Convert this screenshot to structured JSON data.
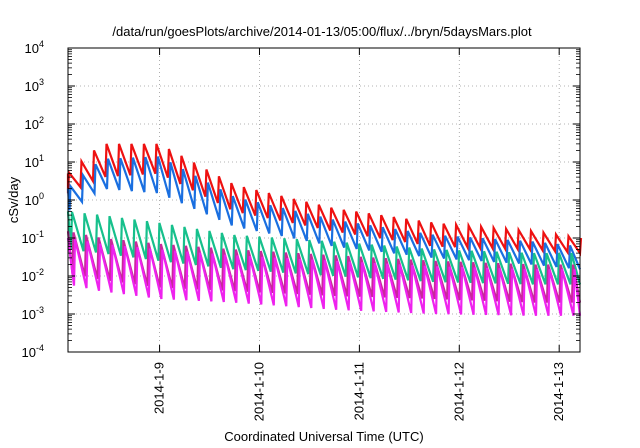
{
  "chart_data": {
    "type": "line",
    "title": "/data/run/goesPlots/archive/2014-01-13/05:00/flux/../bryn/5daysMars.plot",
    "xlabel": "Coordinated Universal Time (UTC)",
    "ylabel": "cSv/day",
    "y_scale": "log",
    "ylim": [
      "1e-4",
      "1e4"
    ],
    "xlim": [
      "2014-01-08 02:00",
      "2014-01-13 05:00"
    ],
    "grid": true,
    "y_ticks": [
      {
        "base": "10",
        "exp": "4",
        "value": 10000
      },
      {
        "base": "10",
        "exp": "3",
        "value": 1000
      },
      {
        "base": "10",
        "exp": "2",
        "value": 100
      },
      {
        "base": "10",
        "exp": "1",
        "value": 10
      },
      {
        "base": "10",
        "exp": "0",
        "value": 1
      },
      {
        "base": "10",
        "exp": "-1",
        "value": 0.1
      },
      {
        "base": "10",
        "exp": "-2",
        "value": 0.01
      },
      {
        "base": "10",
        "exp": "-3",
        "value": 0.001
      },
      {
        "base": "10",
        "exp": "-4",
        "value": 0.0001
      }
    ],
    "x_ticks": [
      "2014-1-9",
      "2014-1-10",
      "2014-1-11",
      "2014-1-12",
      "2014-1-13"
    ],
    "sawtooth_period_hours": 3,
    "series": [
      {
        "color": "#ee1111",
        "x": [
          "2014-01-08 02:00",
          "2014-01-08 10:00",
          "2014-01-09 00:00",
          "2014-01-09 18:00",
          "2014-01-10 18:00",
          "2014-01-11 18:00",
          "2014-01-12 18:00",
          "2014-01-13 05:00"
        ],
        "peak": [
          5,
          30,
          30,
          2.5,
          0.6,
          0.25,
          0.15,
          0.1
        ],
        "trough": [
          1.5,
          4,
          5,
          0.5,
          0.15,
          0.06,
          0.05,
          0.04
        ]
      },
      {
        "color": "#1a6fe0",
        "x": [
          "2014-01-08 02:00",
          "2014-01-08 10:00",
          "2014-01-09 00:00",
          "2014-01-09 18:00",
          "2014-01-10 18:00",
          "2014-01-11 18:00",
          "2014-01-12 18:00",
          "2014-01-13 05:00"
        ],
        "peak": [
          2,
          12,
          14,
          1.2,
          0.3,
          0.12,
          0.08,
          0.06
        ],
        "trough": [
          0.5,
          2,
          1.5,
          0.2,
          0.06,
          0.03,
          0.02,
          0.015
        ]
      },
      {
        "color": "#17c08c",
        "x": [
          "2014-01-08 02:00",
          "2014-01-08 10:00",
          "2014-01-09 00:00",
          "2014-01-09 18:00",
          "2014-01-10 18:00",
          "2014-01-11 18:00",
          "2014-01-12 18:00",
          "2014-01-13 05:00"
        ],
        "peak": [
          0.5,
          0.4,
          0.25,
          0.12,
          0.08,
          0.05,
          0.04,
          0.04
        ],
        "trough": [
          0.05,
          0.04,
          0.025,
          0.015,
          0.01,
          0.007,
          0.006,
          0.006
        ]
      },
      {
        "color": "#c8289a",
        "x": [
          "2014-01-08 02:00",
          "2014-01-08 10:00",
          "2014-01-09 00:00",
          "2014-01-09 18:00",
          "2014-01-10 18:00",
          "2014-01-11 18:00",
          "2014-01-12 18:00",
          "2014-01-13 05:00"
        ],
        "peak": [
          0.15,
          0.1,
          0.07,
          0.05,
          0.035,
          0.025,
          0.02,
          0.02
        ],
        "trough": [
          0.012,
          0.008,
          0.005,
          0.004,
          0.003,
          0.0025,
          0.002,
          0.002
        ]
      },
      {
        "color": "#ee22ee",
        "x": [
          "2014-01-08 02:00",
          "2014-01-08 10:00",
          "2014-01-09 00:00",
          "2014-01-09 18:00",
          "2014-01-10 18:00",
          "2014-01-11 18:00",
          "2014-01-12 18:00",
          "2014-01-13 05:00"
        ],
        "peak": [
          0.1,
          0.07,
          0.05,
          0.035,
          0.025,
          0.018,
          0.015,
          0.015
        ],
        "trough": [
          0.006,
          0.004,
          0.0025,
          0.002,
          0.0013,
          0.001,
          0.0009,
          0.0009
        ]
      }
    ]
  }
}
